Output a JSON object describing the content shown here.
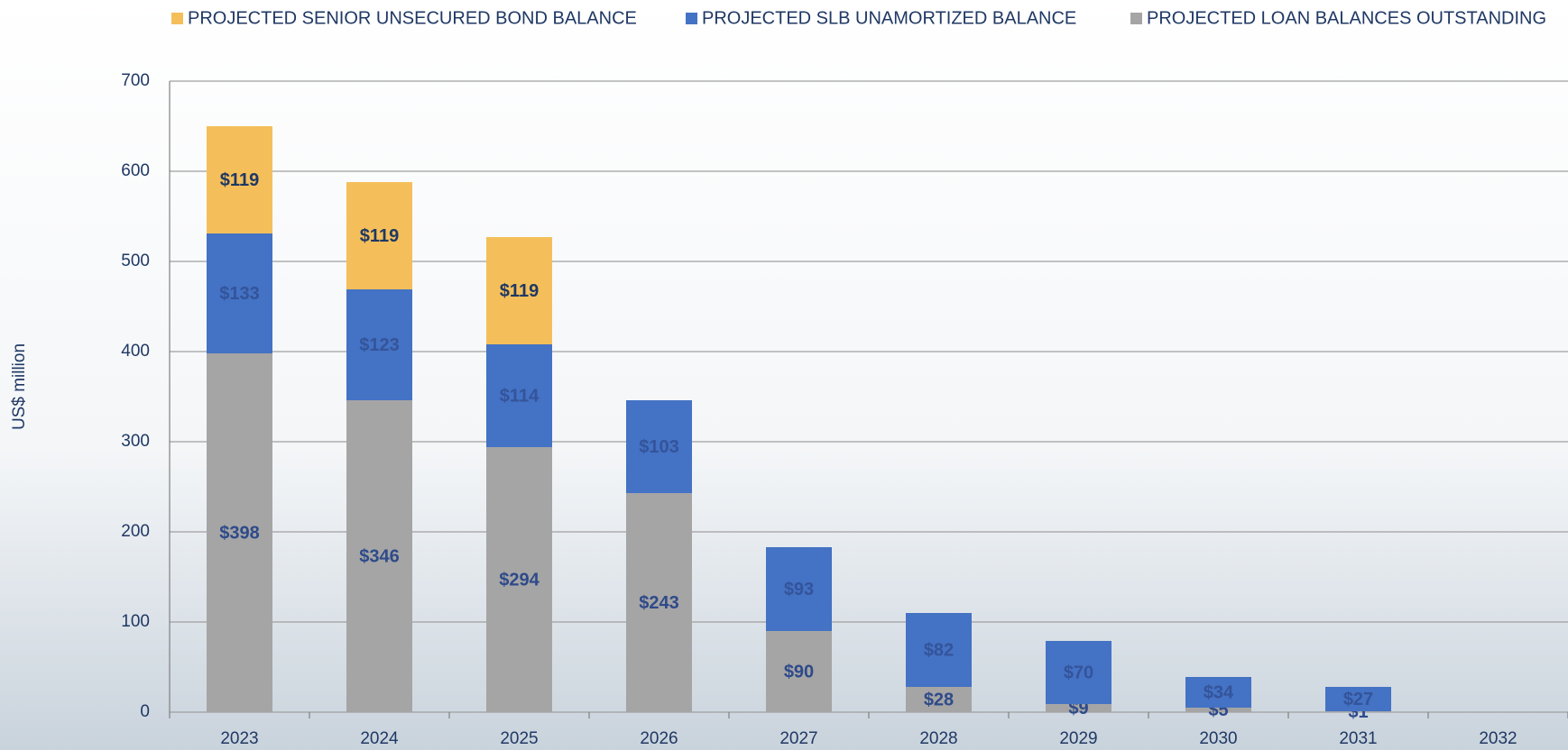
{
  "chart_data": {
    "type": "stacked_bar",
    "y_axis_label": "US$ million",
    "categories": [
      "2023",
      "2024",
      "2025",
      "2026",
      "2027",
      "2028",
      "2029",
      "2030",
      "2031",
      "2032"
    ],
    "series": [
      {
        "name": "PROJECTED LOAN BALANCES OUTSTANDING",
        "color": "#a5a5a5",
        "values": [
          398,
          346,
          294,
          243,
          90,
          28,
          9,
          5,
          1,
          null
        ],
        "value_labels": [
          "$398",
          "$346",
          "$294",
          "$243",
          "$90",
          "$28",
          "$9",
          "$5",
          "$1",
          null
        ]
      },
      {
        "name": "PROJECTED SLB UNAMORTIZED BALANCE",
        "color": "#4472c4",
        "values": [
          133,
          123,
          114,
          103,
          93,
          82,
          70,
          34,
          27,
          null
        ],
        "value_labels": [
          "$133",
          "$123",
          "$114",
          "$103",
          "$93",
          "$82",
          "$70",
          "$34",
          "$27",
          null
        ]
      },
      {
        "name": "PROJECTED SENIOR UNSECURED BOND BALANCE",
        "color": "#f4bf5a",
        "values": [
          119,
          119,
          119,
          null,
          null,
          null,
          null,
          null,
          null,
          null
        ],
        "value_labels": [
          "$119",
          "$119",
          "$119",
          null,
          null,
          null,
          null,
          null,
          null,
          null
        ]
      }
    ],
    "ylim": [
      0,
      700
    ],
    "yticks": [
      0,
      100,
      200,
      300,
      400,
      500,
      600,
      700
    ],
    "grid": true
  }
}
